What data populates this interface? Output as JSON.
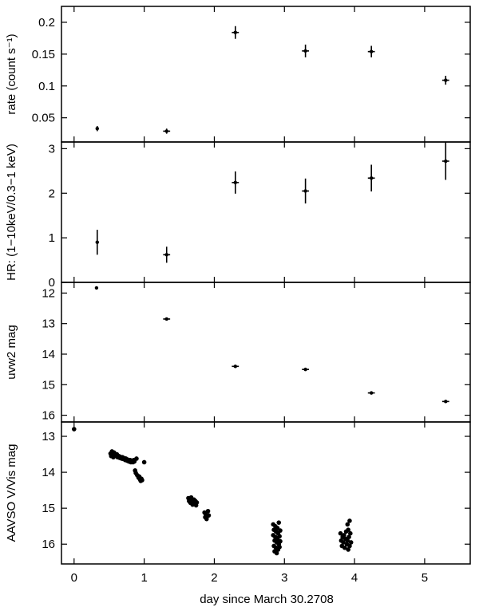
{
  "chart_data": {
    "type": "scatter",
    "xlabel": "day since March 30.2708",
    "xlim": [
      -0.18,
      5.65
    ],
    "xticks": [
      0,
      1,
      2,
      3,
      4,
      5
    ],
    "panels": [
      {
        "ylabel": "rate (count s⁻¹)",
        "ylim": [
          0.012,
          0.225
        ],
        "yticks": [
          0.05,
          0.1,
          0.15,
          0.2
        ],
        "ytick_labels": [
          "0.05",
          "0.1",
          "0.15",
          "0.2"
        ],
        "points": [
          {
            "x": 0.33,
            "y": 0.033,
            "xerr": 0.02,
            "yerr": 0.004
          },
          {
            "x": 1.32,
            "y": 0.029,
            "xerr": 0.05,
            "yerr": 0.004
          },
          {
            "x": 2.3,
            "y": 0.184,
            "xerr": 0.05,
            "yerr": 0.01
          },
          {
            "x": 3.3,
            "y": 0.155,
            "xerr": 0.05,
            "yerr": 0.01
          },
          {
            "x": 4.24,
            "y": 0.154,
            "xerr": 0.05,
            "yerr": 0.009
          },
          {
            "x": 5.3,
            "y": 0.109,
            "xerr": 0.05,
            "yerr": 0.007
          }
        ]
      },
      {
        "ylabel": "HR: (1−10keV/0.3−1 keV)",
        "ylim": [
          0,
          3.15
        ],
        "yticks": [
          0,
          1,
          2,
          3
        ],
        "ytick_labels": [
          "0",
          "1",
          "2",
          "3"
        ],
        "points": [
          {
            "x": 0.33,
            "y": 0.9,
            "xerr": 0.02,
            "yerr": 0.28
          },
          {
            "x": 1.32,
            "y": 0.62,
            "xerr": 0.05,
            "yerr": 0.18
          },
          {
            "x": 2.3,
            "y": 2.24,
            "xerr": 0.05,
            "yerr": 0.25
          },
          {
            "x": 3.3,
            "y": 2.05,
            "xerr": 0.05,
            "yerr": 0.28
          },
          {
            "x": 4.24,
            "y": 2.34,
            "xerr": 0.05,
            "yerr": 0.3
          },
          {
            "x": 5.3,
            "y": 2.72,
            "xerr": 0.05,
            "yerr": 0.42
          }
        ]
      },
      {
        "ylabel": "uvw2 mag",
        "ylim": [
          11.65,
          16.22
        ],
        "inverted": true,
        "yticks": [
          12,
          13,
          14,
          15,
          16
        ],
        "ytick_labels": [
          "12",
          "13",
          "14",
          "15",
          "16"
        ],
        "points": [
          {
            "x": 0.32,
            "y": 11.83,
            "xerr": 0.0,
            "yerr": 0.0
          },
          {
            "x": 1.32,
            "y": 12.85,
            "xerr": 0.05,
            "yerr": 0.0
          },
          {
            "x": 2.3,
            "y": 14.4,
            "xerr": 0.05,
            "yerr": 0.0
          },
          {
            "x": 3.3,
            "y": 14.5,
            "xerr": 0.05,
            "yerr": 0.0
          },
          {
            "x": 4.24,
            "y": 15.27,
            "xerr": 0.05,
            "yerr": 0.0
          },
          {
            "x": 5.3,
            "y": 15.55,
            "xerr": 0.05,
            "yerr": 0.0
          }
        ]
      },
      {
        "ylabel": "AAVSO V/Vis mag",
        "ylim": [
          12.6,
          16.55
        ],
        "inverted": true,
        "yticks": [
          13,
          14,
          15,
          16
        ],
        "ytick_labels": [
          "13",
          "14",
          "15",
          "16"
        ],
        "points": [
          {
            "x": 0.0,
            "y": 12.8
          },
          {
            "x": 0.52,
            "y": 13.48
          },
          {
            "x": 0.53,
            "y": 13.55
          },
          {
            "x": 0.54,
            "y": 13.42
          },
          {
            "x": 0.55,
            "y": 13.5
          },
          {
            "x": 0.56,
            "y": 13.58
          },
          {
            "x": 0.57,
            "y": 13.45
          },
          {
            "x": 0.58,
            "y": 13.52
          },
          {
            "x": 0.6,
            "y": 13.55
          },
          {
            "x": 0.61,
            "y": 13.5
          },
          {
            "x": 0.62,
            "y": 13.58
          },
          {
            "x": 0.64,
            "y": 13.55
          },
          {
            "x": 0.65,
            "y": 13.6
          },
          {
            "x": 0.66,
            "y": 13.57
          },
          {
            "x": 0.68,
            "y": 13.62
          },
          {
            "x": 0.69,
            "y": 13.58
          },
          {
            "x": 0.7,
            "y": 13.63
          },
          {
            "x": 0.72,
            "y": 13.61
          },
          {
            "x": 0.73,
            "y": 13.66
          },
          {
            "x": 0.74,
            "y": 13.62
          },
          {
            "x": 0.76,
            "y": 13.68
          },
          {
            "x": 0.77,
            "y": 13.65
          },
          {
            "x": 0.78,
            "y": 13.7
          },
          {
            "x": 0.8,
            "y": 13.66
          },
          {
            "x": 0.81,
            "y": 13.72
          },
          {
            "x": 0.82,
            "y": 13.68
          },
          {
            "x": 0.84,
            "y": 13.72
          },
          {
            "x": 0.85,
            "y": 13.66
          },
          {
            "x": 0.86,
            "y": 13.7
          },
          {
            "x": 0.87,
            "y": 13.95
          },
          {
            "x": 0.88,
            "y": 14.02
          },
          {
            "x": 0.89,
            "y": 13.62
          },
          {
            "x": 0.9,
            "y": 14.08
          },
          {
            "x": 0.91,
            "y": 14.1
          },
          {
            "x": 0.92,
            "y": 14.15
          },
          {
            "x": 0.93,
            "y": 14.12
          },
          {
            "x": 0.94,
            "y": 14.2
          },
          {
            "x": 0.95,
            "y": 14.24
          },
          {
            "x": 0.96,
            "y": 14.18
          },
          {
            "x": 0.97,
            "y": 14.22
          },
          {
            "x": 1.0,
            "y": 13.72
          },
          {
            "x": 1.63,
            "y": 14.72
          },
          {
            "x": 1.64,
            "y": 14.8
          },
          {
            "x": 1.65,
            "y": 14.75
          },
          {
            "x": 1.66,
            "y": 14.85
          },
          {
            "x": 1.67,
            "y": 14.7
          },
          {
            "x": 1.68,
            "y": 14.78
          },
          {
            "x": 1.69,
            "y": 14.9
          },
          {
            "x": 1.7,
            "y": 14.82
          },
          {
            "x": 1.71,
            "y": 14.76
          },
          {
            "x": 1.72,
            "y": 14.86
          },
          {
            "x": 1.73,
            "y": 14.8
          },
          {
            "x": 1.74,
            "y": 14.92
          },
          {
            "x": 1.75,
            "y": 14.84
          },
          {
            "x": 1.86,
            "y": 15.12
          },
          {
            "x": 1.87,
            "y": 15.25
          },
          {
            "x": 1.88,
            "y": 15.18
          },
          {
            "x": 1.89,
            "y": 15.3
          },
          {
            "x": 1.9,
            "y": 15.22
          },
          {
            "x": 1.91,
            "y": 15.08
          },
          {
            "x": 1.92,
            "y": 15.2
          },
          {
            "x": 2.84,
            "y": 15.45
          },
          {
            "x": 2.84,
            "y": 15.75
          },
          {
            "x": 2.85,
            "y": 16.05
          },
          {
            "x": 2.85,
            "y": 15.6
          },
          {
            "x": 2.86,
            "y": 15.9
          },
          {
            "x": 2.86,
            "y": 16.2
          },
          {
            "x": 2.87,
            "y": 15.5
          },
          {
            "x": 2.87,
            "y": 15.8
          },
          {
            "x": 2.88,
            "y": 16.1
          },
          {
            "x": 2.88,
            "y": 15.65
          },
          {
            "x": 2.89,
            "y": 15.95
          },
          {
            "x": 2.89,
            "y": 16.25
          },
          {
            "x": 2.9,
            "y": 15.55
          },
          {
            "x": 2.9,
            "y": 15.85
          },
          {
            "x": 2.91,
            "y": 16.15
          },
          {
            "x": 2.91,
            "y": 15.7
          },
          {
            "x": 2.92,
            "y": 16.0
          },
          {
            "x": 2.92,
            "y": 15.4
          },
          {
            "x": 2.93,
            "y": 15.78
          },
          {
            "x": 2.93,
            "y": 16.08
          },
          {
            "x": 2.94,
            "y": 15.62
          },
          {
            "x": 2.94,
            "y": 15.92
          },
          {
            "x": 3.8,
            "y": 15.7
          },
          {
            "x": 3.81,
            "y": 15.9
          },
          {
            "x": 3.82,
            "y": 16.05
          },
          {
            "x": 3.83,
            "y": 15.8
          },
          {
            "x": 3.84,
            "y": 15.95
          },
          {
            "x": 3.85,
            "y": 15.75
          },
          {
            "x": 3.86,
            "y": 16.1
          },
          {
            "x": 3.87,
            "y": 15.85
          },
          {
            "x": 3.88,
            "y": 15.65
          },
          {
            "x": 3.89,
            "y": 16.0
          },
          {
            "x": 3.9,
            "y": 15.45
          },
          {
            "x": 3.9,
            "y": 15.9
          },
          {
            "x": 3.91,
            "y": 16.15
          },
          {
            "x": 3.91,
            "y": 15.6
          },
          {
            "x": 3.92,
            "y": 15.8
          },
          {
            "x": 3.93,
            "y": 16.05
          },
          {
            "x": 3.93,
            "y": 15.35
          },
          {
            "x": 3.94,
            "y": 15.7
          },
          {
            "x": 3.95,
            "y": 15.95
          }
        ]
      }
    ]
  }
}
